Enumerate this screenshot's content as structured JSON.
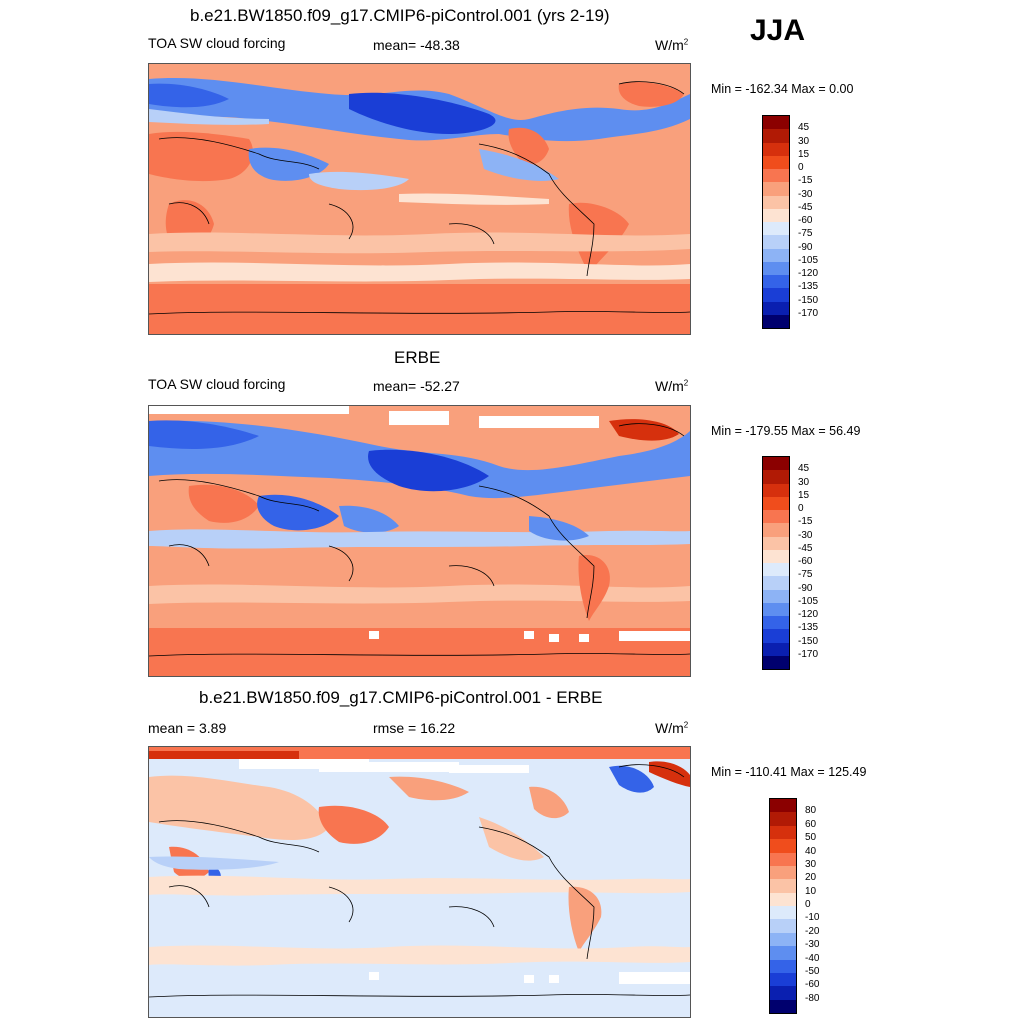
{
  "season": "JJA",
  "panels": [
    {
      "title": "b.e21.BW1850.f09_g17.CMIP6-piControl.001 (yrs 2-19)",
      "left_label": "TOA SW cloud forcing",
      "center_label": "mean= -48.38",
      "units": "W/m",
      "units_sup": "2",
      "minmax": "Min = -162.34 Max =   0.00"
    },
    {
      "title": "ERBE",
      "left_label": "TOA SW cloud forcing",
      "center_label": "mean= -52.27",
      "units": "W/m",
      "units_sup": "2",
      "minmax": "Min = -179.55 Max =  56.49"
    },
    {
      "title": "b.e21.BW1850.f09_g17.CMIP6-piControl.001 - ERBE",
      "left_label": "mean =   3.89",
      "center_label": "rmse =  16.22",
      "units": "W/m",
      "units_sup": "2",
      "minmax": "Min = -110.41 Max = 125.49"
    }
  ],
  "colorbars": {
    "field": {
      "labels": [
        "45",
        "30",
        "15",
        "0",
        "-15",
        "-30",
        "-45",
        "-60",
        "-75",
        "-90",
        "-105",
        "-120",
        "-135",
        "-150",
        "-170"
      ],
      "colors": [
        "#8b0000",
        "#b11a05",
        "#d6300d",
        "#f04d1c",
        "#f87550",
        "#f9a07c",
        "#fbc3a6",
        "#fde3d2",
        "#ddeafb",
        "#b8d0f8",
        "#8db3f5",
        "#5e8ef0",
        "#3463e8",
        "#1a3ed6",
        "#0a1fb0",
        "#00006e"
      ]
    },
    "diff": {
      "labels": [
        "80",
        "60",
        "50",
        "40",
        "30",
        "20",
        "10",
        "0",
        "-10",
        "-20",
        "-30",
        "-40",
        "-50",
        "-60",
        "-80"
      ],
      "colors": [
        "#8b0000",
        "#b11a05",
        "#d6300d",
        "#f04d1c",
        "#f87550",
        "#f9a07c",
        "#fbc3a6",
        "#fde3d2",
        "#ddeafb",
        "#b8d0f8",
        "#8db3f5",
        "#5e8ef0",
        "#3463e8",
        "#1a3ed6",
        "#0a1fb0",
        "#00006e"
      ]
    }
  }
}
